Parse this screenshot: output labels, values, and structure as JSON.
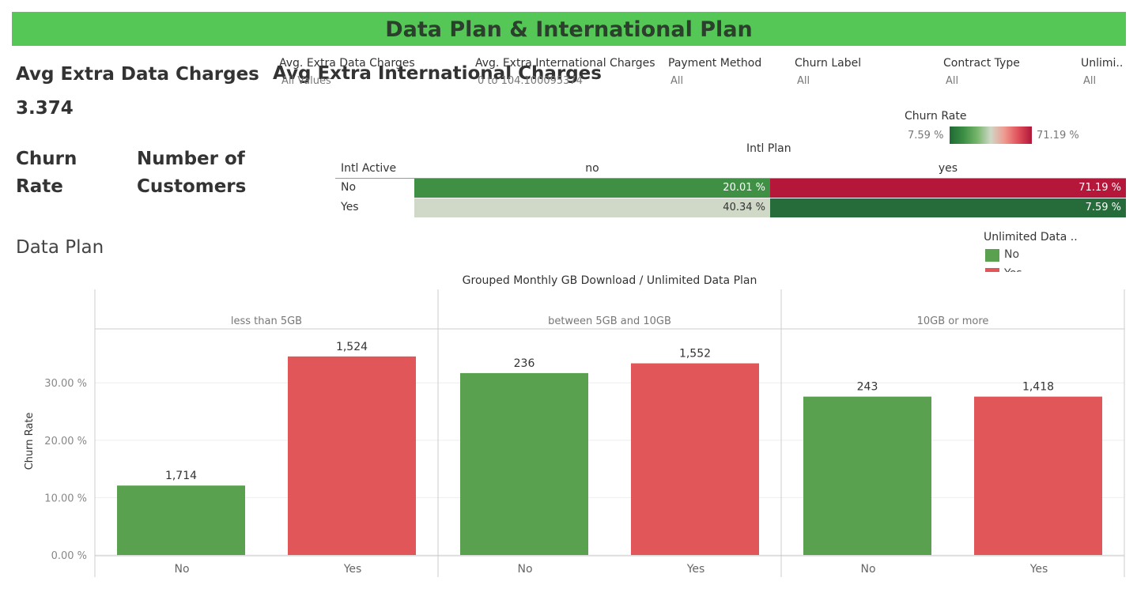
{
  "header": {
    "title": "Data Plan & International Plan"
  },
  "kpis": [
    {
      "label": "Avg Extra Data Charges",
      "value": "3.374"
    },
    {
      "label": "Avg Extra International Charges"
    },
    {
      "label": "Churn Rate"
    },
    {
      "label": "Number of Customers"
    }
  ],
  "filters": [
    {
      "label": "Avg. Extra Data Charges",
      "value": "All Values"
    },
    {
      "label": "Avg. Extra International Charges",
      "value": "0 to 104.100095374"
    },
    {
      "label": "Payment Method",
      "value": "All"
    },
    {
      "label": "Churn Label",
      "value": "All"
    },
    {
      "label": "Contract Type",
      "value": "All"
    },
    {
      "label": "Unlimi..",
      "value": "All"
    }
  ],
  "churn_legend": {
    "title": "Churn Rate",
    "min": "7.59 %",
    "max": "71.19 %"
  },
  "heat_table": {
    "title": "Intl Plan",
    "row_header": "Intl Active",
    "columns": [
      "no",
      "yes"
    ],
    "rows": [
      {
        "label": "No",
        "cells": [
          "20.01 %",
          "71.19 %"
        ]
      },
      {
        "label": "Yes",
        "cells": [
          "40.34 %",
          "7.59 %"
        ]
      }
    ]
  },
  "section_title": "Data Plan",
  "chart_data": {
    "type": "bar",
    "title": "Grouped Monthly GB Download / Unlimited Data Plan",
    "y_label": "Churn Rate",
    "legend_title": "Unlimited Data ..",
    "categories": [
      "less than 5GB",
      "between 5GB and 10GB",
      "10GB or more"
    ],
    "series": [
      {
        "name": "No",
        "color": "#59a14f",
        "values": [
          12.1,
          31.7,
          27.6
        ],
        "bar_labels": [
          "1,714",
          "236",
          "243"
        ]
      },
      {
        "name": "Yes",
        "color": "#e15759",
        "values": [
          34.6,
          33.4,
          27.6
        ],
        "bar_labels": [
          "1,524",
          "1,552",
          "1,418"
        ]
      }
    ],
    "ylim": [
      0,
      39.4
    ],
    "yticks": [
      {
        "value": 0,
        "label": "0.00 %"
      },
      {
        "value": 10,
        "label": "10.00 %"
      },
      {
        "value": 20,
        "label": "20.00 %"
      },
      {
        "value": 30,
        "label": "30.00 %"
      }
    ],
    "grid": true
  }
}
